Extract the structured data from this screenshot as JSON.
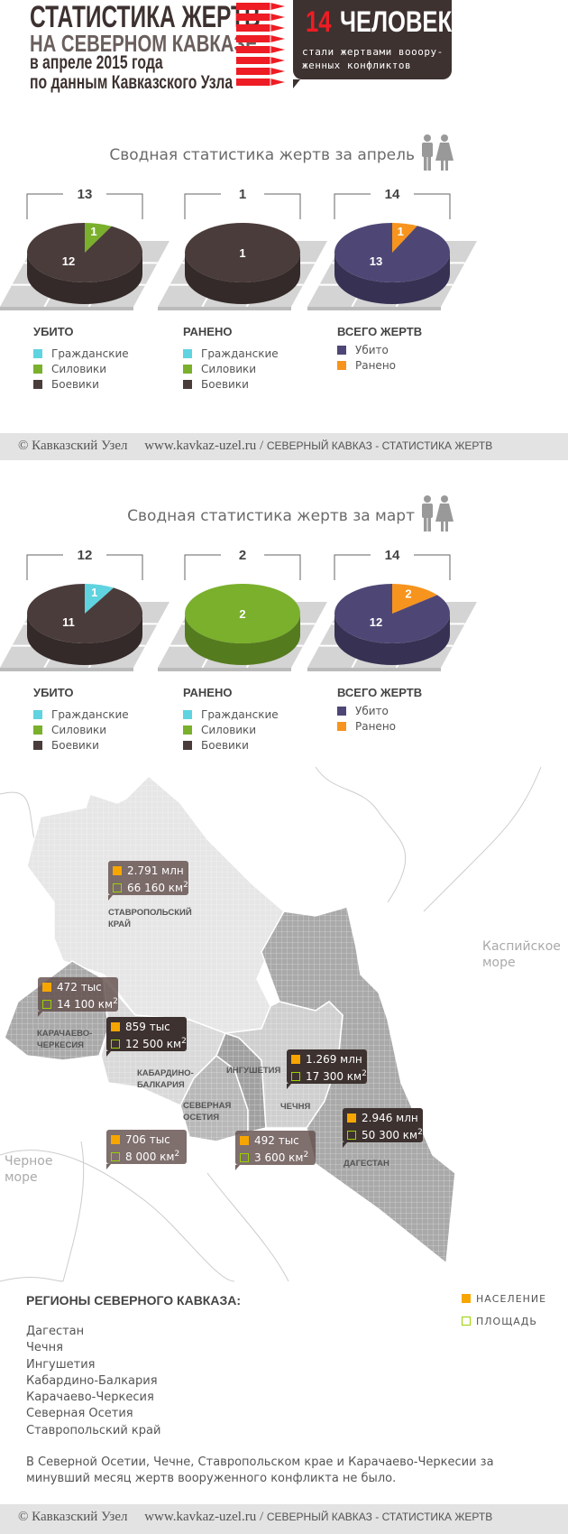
{
  "header": {
    "title_line1": "СТАТИСТИКА ЖЕРТВ",
    "title_line2": "НА СЕВЕРНОМ КАВКАЗЕ",
    "title_line3": "в апреле 2015 года",
    "title_line4": "по данным Кавказского Узла",
    "callout_number": "14",
    "callout_word": "ЧЕЛОВЕК",
    "callout_text": "стали жертвами вооору- женных конфликтов"
  },
  "colors": {
    "civilians": "#5fd3e0",
    "security": "#7ab02c",
    "militants": "#4a3c3a",
    "killed": "#4e4776",
    "wounded": "#f7941d",
    "accent": "#ee1c24"
  },
  "sections": [
    {
      "title": "Сводная статистика жертв за апрель",
      "legends": [
        {
          "heading": "УБИТО",
          "items": [
            {
              "label": "Гражданские",
              "color": "#5fd3e0"
            },
            {
              "label": "Силовики",
              "color": "#7ab02c"
            },
            {
              "label": "Боевики",
              "color": "#4a3c3a"
            }
          ]
        },
        {
          "heading": "РАНЕНО",
          "items": [
            {
              "label": "Гражданские",
              "color": "#5fd3e0"
            },
            {
              "label": "Силовики",
              "color": "#7ab02c"
            },
            {
              "label": "Боевики",
              "color": "#4a3c3a"
            }
          ]
        },
        {
          "heading": "ВСЕГО ЖЕРТВ",
          "items": [
            {
              "label": "Убито",
              "color": "#4e4776"
            },
            {
              "label": "Ранено",
              "color": "#f7941d"
            }
          ]
        }
      ]
    },
    {
      "title": "Сводная статистика жертв за март",
      "legends": [
        {
          "heading": "УБИТО",
          "items": [
            {
              "label": "Гражданские",
              "color": "#5fd3e0"
            },
            {
              "label": "Силовики",
              "color": "#7ab02c"
            },
            {
              "label": "Боевики",
              "color": "#4a3c3a"
            }
          ]
        },
        {
          "heading": "РАНЕНО",
          "items": [
            {
              "label": "Гражданские",
              "color": "#5fd3e0"
            },
            {
              "label": "Силовики",
              "color": "#7ab02c"
            },
            {
              "label": "Боевики",
              "color": "#4a3c3a"
            }
          ]
        },
        {
          "heading": "ВСЕГО ЖЕРТВ",
          "items": [
            {
              "label": "Убито",
              "color": "#4e4776"
            },
            {
              "label": "Ранено",
              "color": "#f7941d"
            }
          ]
        }
      ]
    }
  ],
  "chart_data": [
    {
      "type": "pie",
      "period": "апрель",
      "heading": "УБИТО",
      "total": "13",
      "slices": [
        {
          "name": "Силовики",
          "value": 1,
          "color": "#7ab02c"
        },
        {
          "name": "Боевики",
          "value": 12,
          "color": "#4a3c3a"
        }
      ]
    },
    {
      "type": "pie",
      "period": "апрель",
      "heading": "РАНЕНО",
      "total": "1",
      "slices": [
        {
          "name": "Боевики",
          "value": 1,
          "color": "#4a3c3a"
        }
      ]
    },
    {
      "type": "pie",
      "period": "апрель",
      "heading": "ВСЕГО ЖЕРТВ",
      "total": "14",
      "slices": [
        {
          "name": "Ранено",
          "value": 1,
          "color": "#f7941d"
        },
        {
          "name": "Убито",
          "value": 13,
          "color": "#4e4776"
        }
      ]
    },
    {
      "type": "pie",
      "period": "март",
      "heading": "УБИТО",
      "total": "12",
      "slices": [
        {
          "name": "Гражданские",
          "value": 1,
          "color": "#5fd3e0"
        },
        {
          "name": "Боевики",
          "value": 11,
          "color": "#4a3c3a"
        }
      ]
    },
    {
      "type": "pie",
      "period": "март",
      "heading": "РАНЕНО",
      "total": "2",
      "slices": [
        {
          "name": "Силовики",
          "value": 2,
          "color": "#7ab02c"
        }
      ]
    },
    {
      "type": "pie",
      "period": "март",
      "heading": "ВСЕГО ЖЕРТВ",
      "total": "14",
      "slices": [
        {
          "name": "Ранено",
          "value": 2,
          "color": "#f7941d"
        },
        {
          "name": "Убито",
          "value": 12,
          "color": "#4e4776"
        }
      ]
    }
  ],
  "footer": {
    "copyright": "© Кавказский Узел",
    "url": "www.kavkaz-uzel.ru",
    "sep": "/",
    "section": "СЕВЕРНЫЙ КАВКАЗ - СТАТИСТИКА ЖЕРТВ"
  },
  "map": {
    "seas": {
      "caspian": "Каспийское море",
      "black": "Черное море"
    },
    "regions": [
      {
        "name": "СТАВРОПОЛЬСКИЙ КРАЙ",
        "population": "2.791 млн",
        "area": "66 160 км",
        "sup": "2"
      },
      {
        "name": "КАРАЧАЕВО- ЧЕРКЕСИЯ",
        "population": "472 тыс",
        "area": "14 100 км",
        "sup": "2"
      },
      {
        "name": "КАБАРДИНО- БАЛКАРИЯ",
        "population": "859 тыс",
        "area": "12 500 км",
        "sup": "2"
      },
      {
        "name": "ИНГУШЕТИЯ",
        "population": "492 тыс",
        "area": "3 600 км",
        "sup": "2"
      },
      {
        "name": "СЕВЕРНАЯ ОСЕТИЯ",
        "population": "706 тыс",
        "area": "8 000 км",
        "sup": "2"
      },
      {
        "name": "ЧЕЧНЯ",
        "population": "1.269 млн",
        "area": "17 300 км",
        "sup": "2"
      },
      {
        "name": "ДАГЕСТАН",
        "population": "2.946 млн",
        "area": "50 300 км",
        "sup": "2"
      }
    ]
  },
  "regions_block": {
    "heading": "РЕГИОНЫ СЕВЕРНОГО КАВКАЗА:",
    "legend_population": "НАСЕЛЕНИЕ",
    "legend_area": "ПЛОЩАДЬ",
    "list": [
      "Дагестан",
      "Чечня",
      "Ингушетия",
      "Кабардино-Балкария",
      "Карачаево-Черкесия",
      "Северная Осетия",
      "Ставропольский край"
    ],
    "note": "В Северной Осетии, Чечне, Ставропольском крае и Карачаево-Черкесии за минувший месяц жертв вооруженного конфликта не было."
  }
}
